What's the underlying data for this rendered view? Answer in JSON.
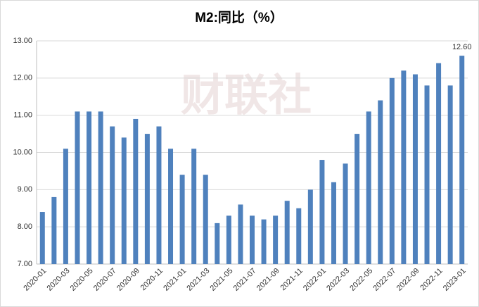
{
  "chart_data": {
    "type": "bar",
    "title": "M2:同比（%）",
    "watermark": "财联社",
    "categories": [
      "2020-01",
      null,
      "2020-03",
      null,
      "2020-05",
      null,
      "2020-07",
      null,
      "2020-09",
      null,
      "2020-11",
      null,
      "2021-01",
      null,
      "2021-03",
      null,
      "2021-05",
      null,
      "2021-07",
      null,
      "2021-09",
      null,
      "2021-11",
      null,
      "2022-01",
      null,
      "2022-03",
      null,
      "2022-05",
      null,
      "2022-07",
      null,
      "2022-09",
      null,
      "2022-11",
      null,
      "2023-01"
    ],
    "values": [
      8.4,
      8.8,
      10.1,
      11.1,
      11.1,
      11.1,
      10.7,
      10.4,
      10.9,
      10.5,
      10.7,
      10.1,
      9.4,
      10.1,
      9.4,
      8.1,
      8.3,
      8.6,
      8.3,
      8.2,
      8.3,
      8.7,
      8.5,
      9.0,
      9.8,
      9.2,
      9.7,
      10.5,
      11.1,
      11.4,
      12.0,
      12.2,
      12.1,
      11.8,
      12.4,
      11.8,
      12.6
    ],
    "value_labels": [
      null,
      null,
      null,
      null,
      null,
      null,
      null,
      null,
      null,
      null,
      null,
      null,
      null,
      null,
      null,
      null,
      null,
      null,
      null,
      null,
      null,
      null,
      null,
      null,
      null,
      null,
      null,
      null,
      null,
      null,
      null,
      null,
      null,
      null,
      null,
      null,
      "12.60"
    ],
    "color": "#4f81bd",
    "ylim": [
      7,
      13
    ],
    "yticks": [
      {
        "value": 7,
        "label": "7.00"
      },
      {
        "value": 8,
        "label": "8.00"
      },
      {
        "value": 9,
        "label": "9.00"
      },
      {
        "value": 10,
        "label": "10.00"
      },
      {
        "value": 11,
        "label": "11.00"
      },
      {
        "value": 12,
        "label": "12.00"
      },
      {
        "value": 13,
        "label": "13.00"
      }
    ],
    "grid": true
  }
}
